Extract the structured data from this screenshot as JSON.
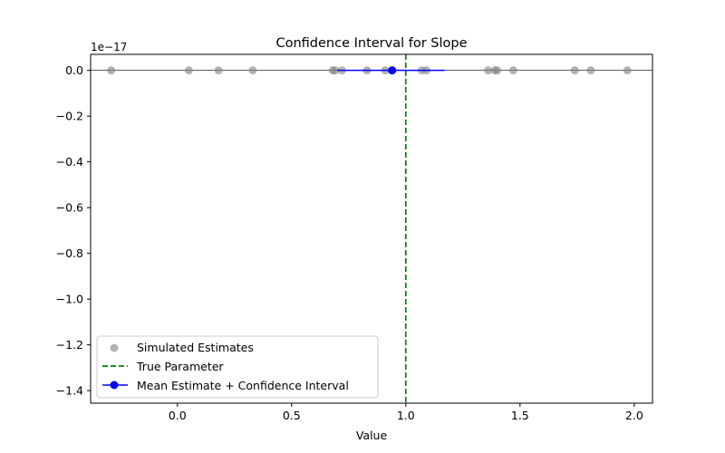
{
  "chart_data": {
    "type": "scatter",
    "title": "Confidence Interval for Slope",
    "xlabel": "Value",
    "ylabel": "",
    "y_offset_label": "1e−17",
    "xlim": [
      -0.38,
      2.08
    ],
    "ylim": [
      -1.455,
      0.07
    ],
    "x_ticks": [
      0.0,
      0.5,
      1.0,
      1.5,
      2.0
    ],
    "x_tick_labels": [
      "0.0",
      "0.5",
      "1.0",
      "1.5",
      "2.0"
    ],
    "y_ticks": [
      0.0,
      -0.2,
      -0.4,
      -0.6,
      -0.8,
      -1.0,
      -1.2,
      -1.4
    ],
    "y_tick_labels": [
      "0.0",
      "−0.2",
      "−0.4",
      "−0.6",
      "−0.8",
      "−1.0",
      "−1.2",
      "−1.4"
    ],
    "grid": false,
    "legend_position": "lower-left",
    "simulated_estimates": {
      "name": "Simulated Estimates",
      "color": "#808080",
      "x": [
        -0.29,
        0.05,
        0.18,
        0.33,
        0.68,
        0.69,
        0.72,
        0.83,
        0.91,
        1.07,
        1.09,
        1.36,
        1.39,
        1.4,
        1.47,
        1.74,
        1.81,
        1.97
      ],
      "y": [
        0,
        0,
        0,
        0,
        0,
        0,
        0,
        0,
        0,
        0,
        0,
        0,
        0,
        0,
        0,
        0,
        0,
        0
      ]
    },
    "true_parameter": {
      "name": "True Parameter",
      "value": 1.0,
      "color": "#008000"
    },
    "mean_estimate": {
      "name": "Mean Estimate + Confidence Interval",
      "value": 0.94,
      "ci_low": 0.7,
      "ci_high": 1.17,
      "y": 0,
      "color": "#0000ff"
    }
  }
}
